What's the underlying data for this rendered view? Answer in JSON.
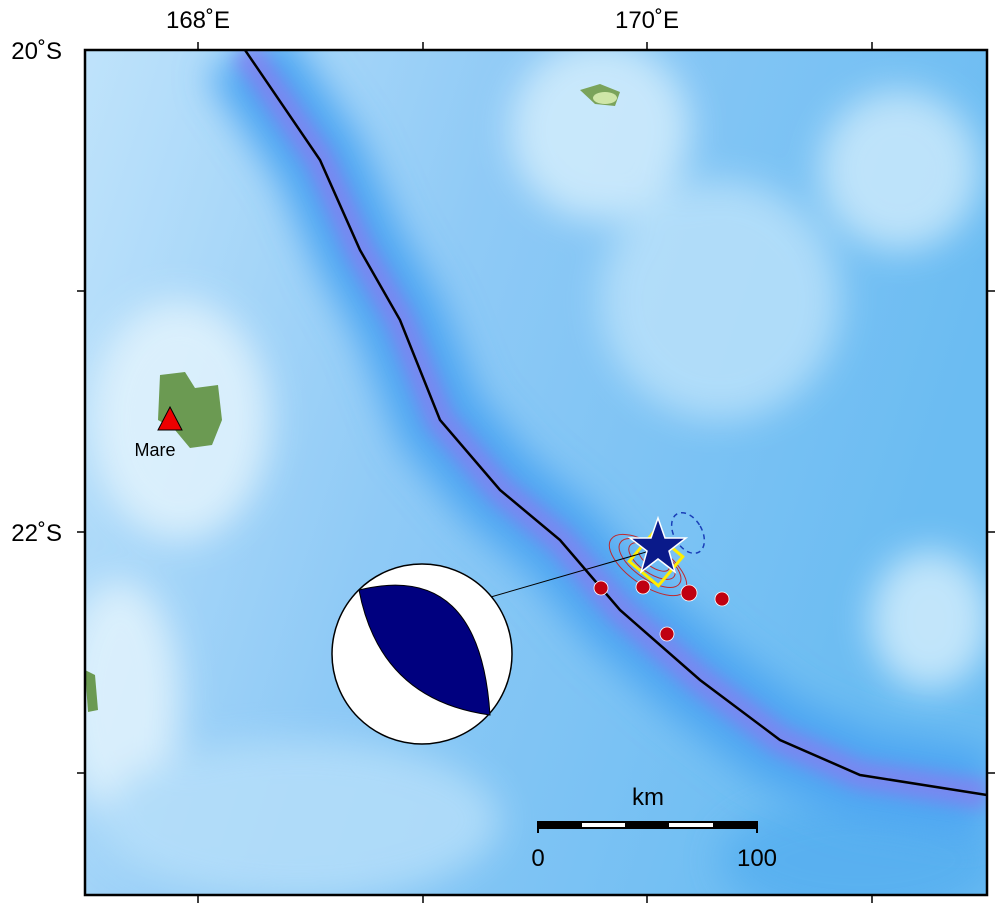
{
  "map": {
    "lon_labels": [
      "168˚E",
      "170˚E"
    ],
    "lat_labels": [
      "20˚S",
      "22˚S"
    ],
    "place": "Mare",
    "scale_bar": {
      "unit": "km",
      "start": "0",
      "end": "100"
    }
  }
}
